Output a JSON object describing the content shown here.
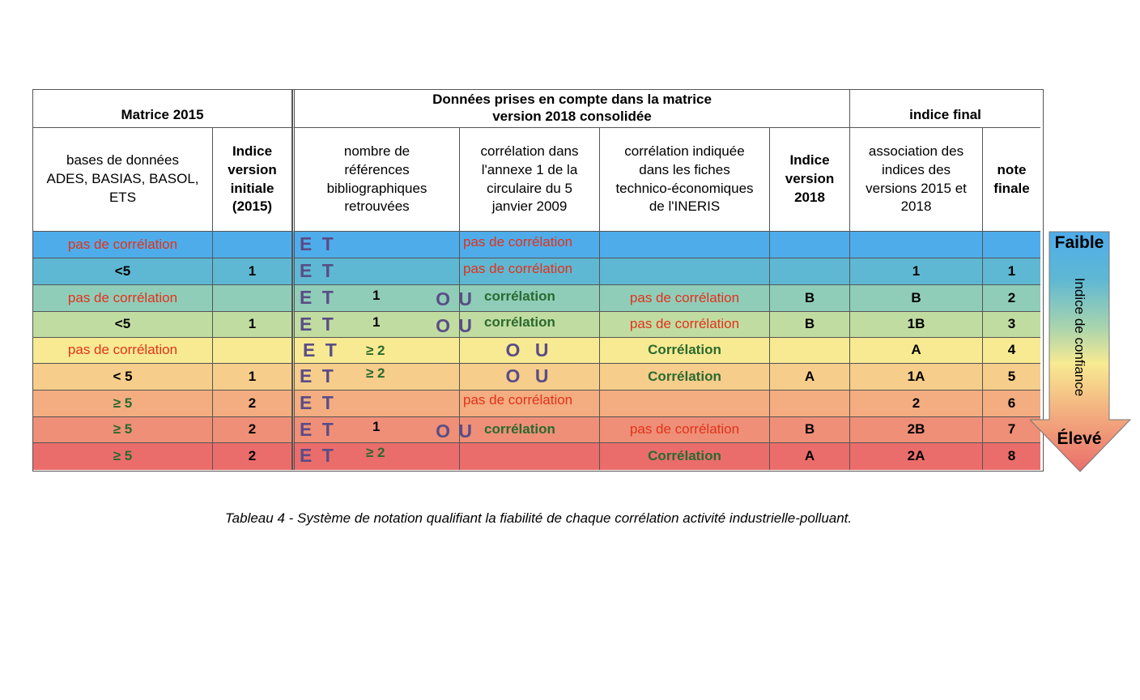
{
  "headers": {
    "matrix2015": "Matrice 2015",
    "matrix2018": "Données prises en compte dans la matrice\nversion 2018 consolidée",
    "final": "indice final",
    "bases": "bases de données ADES, BASIAS, BASOL, ETS",
    "indice_initial": "Indice version initiale (2015)",
    "nombre_refs": "nombre de références bibliographiques retrouvées",
    "corr_annexe": "corrélation dans l'annexe 1 de la circulaire du 5 janvier 2009",
    "corr_fiches": "corrélation indiquée dans les fiches technico-économiques de l'INERIS",
    "indice_2018": "Indice version 2018",
    "association": "association des indices des versions 2015 et 2018",
    "note": "note finale"
  },
  "tokens": {
    "et": "E T",
    "ou": "O U",
    "pas": "pas de corrélation",
    "corr": "corrélation",
    "Corr": "Corrélation",
    "one": "1",
    "ge2": "≥ 2"
  },
  "rows": [
    {
      "bases": "pas de corrélation",
      "ind2015": "",
      "assoc": "",
      "note": "",
      "ind2018": "",
      "color": "#4facea"
    },
    {
      "bases": "<5",
      "ind2015": "1",
      "assoc": "1",
      "note": "1",
      "ind2018": "",
      "color": "#5eb8d3"
    },
    {
      "bases": "pas de corrélation",
      "ind2015": "",
      "assoc": "B",
      "note": "2",
      "ind2018": "B",
      "color": "#8fcdb9"
    },
    {
      "bases": "<5",
      "ind2015": "1",
      "assoc": "1B",
      "note": "3",
      "ind2018": "B",
      "color": "#c1dca1"
    },
    {
      "bases": "pas de corrélation",
      "ind2015": "",
      "assoc": "A",
      "note": "4",
      "ind2018": "",
      "color": "#f8ea92"
    },
    {
      "bases": "< 5",
      "ind2015": "1",
      "assoc": "1A",
      "note": "5",
      "ind2018": "A",
      "color": "#f6cd8b"
    },
    {
      "bases": "≥ 5",
      "ind2015": "2",
      "assoc": "2",
      "note": "6",
      "ind2018": "",
      "color": "#f3ad80"
    },
    {
      "bases": "≥ 5",
      "ind2015": "2",
      "assoc": "2B",
      "note": "7",
      "ind2018": "B",
      "color": "#ef8f77"
    },
    {
      "bases": "≥ 5",
      "ind2015": "2",
      "assoc": "2A",
      "note": "8",
      "ind2018": "A",
      "color": "#ea6d6b"
    }
  ],
  "arrow": {
    "top": "Faible",
    "middle": "Indice de confiance",
    "bottom": "Élevé"
  },
  "caption": "Tableau 4 - Système de notation qualifiant la fiabilité de chaque corrélation activité industrielle-polluant."
}
